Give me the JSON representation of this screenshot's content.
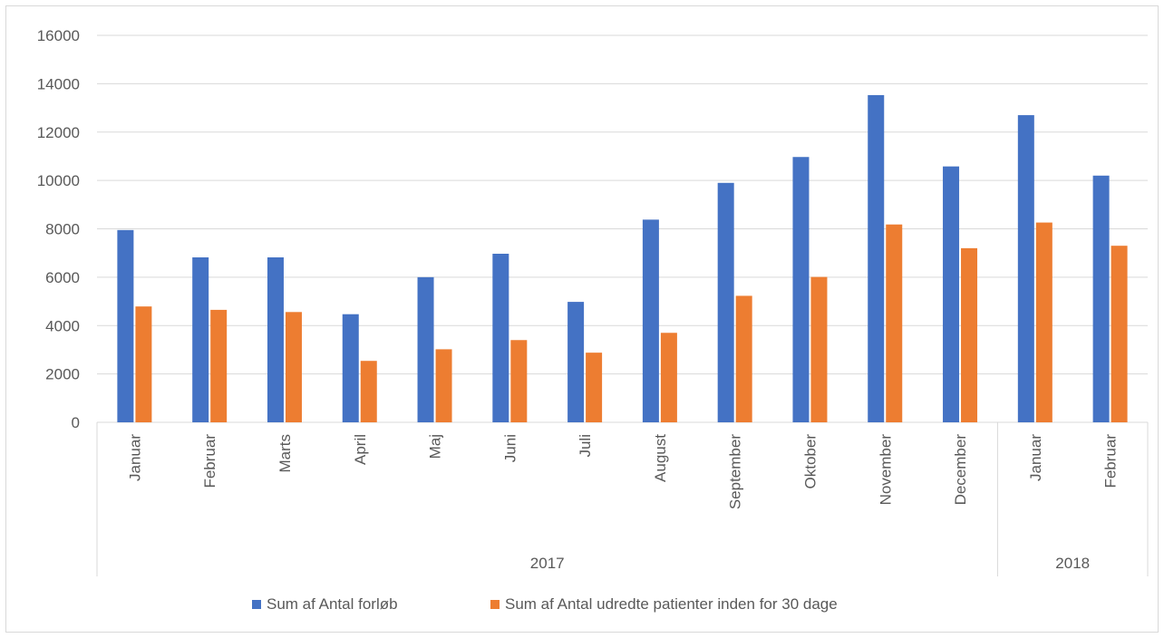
{
  "chart_data": {
    "type": "bar",
    "title": "",
    "xlabel": "",
    "ylabel": "",
    "ylim": [
      0,
      16000
    ],
    "yticks": [
      0,
      2000,
      4000,
      6000,
      8000,
      10000,
      12000,
      14000,
      16000
    ],
    "grid": true,
    "legend_position": "bottom",
    "groups": [
      {
        "label": "2017",
        "count": 12
      },
      {
        "label": "2018",
        "count": 2
      }
    ],
    "categories": [
      "Januar",
      "Februar",
      "Marts",
      "April",
      "Maj",
      "Juni",
      "Juli",
      "August",
      "September",
      "Oktober",
      "November",
      "December",
      "Januar",
      "Februar"
    ],
    "series": [
      {
        "name": "Sum af Antal forløb",
        "color": "#4472c4",
        "values": [
          7950,
          6820,
          6820,
          4470,
          6000,
          6970,
          4980,
          8380,
          9900,
          10970,
          13530,
          10580,
          12700,
          10200
        ]
      },
      {
        "name": "Sum af Antal udredte patienter inden for 30 dage",
        "color": "#ed7d31",
        "values": [
          4790,
          4650,
          4560,
          2540,
          3020,
          3400,
          2880,
          3700,
          5230,
          6010,
          8180,
          7200,
          8260,
          7300
        ]
      }
    ]
  }
}
